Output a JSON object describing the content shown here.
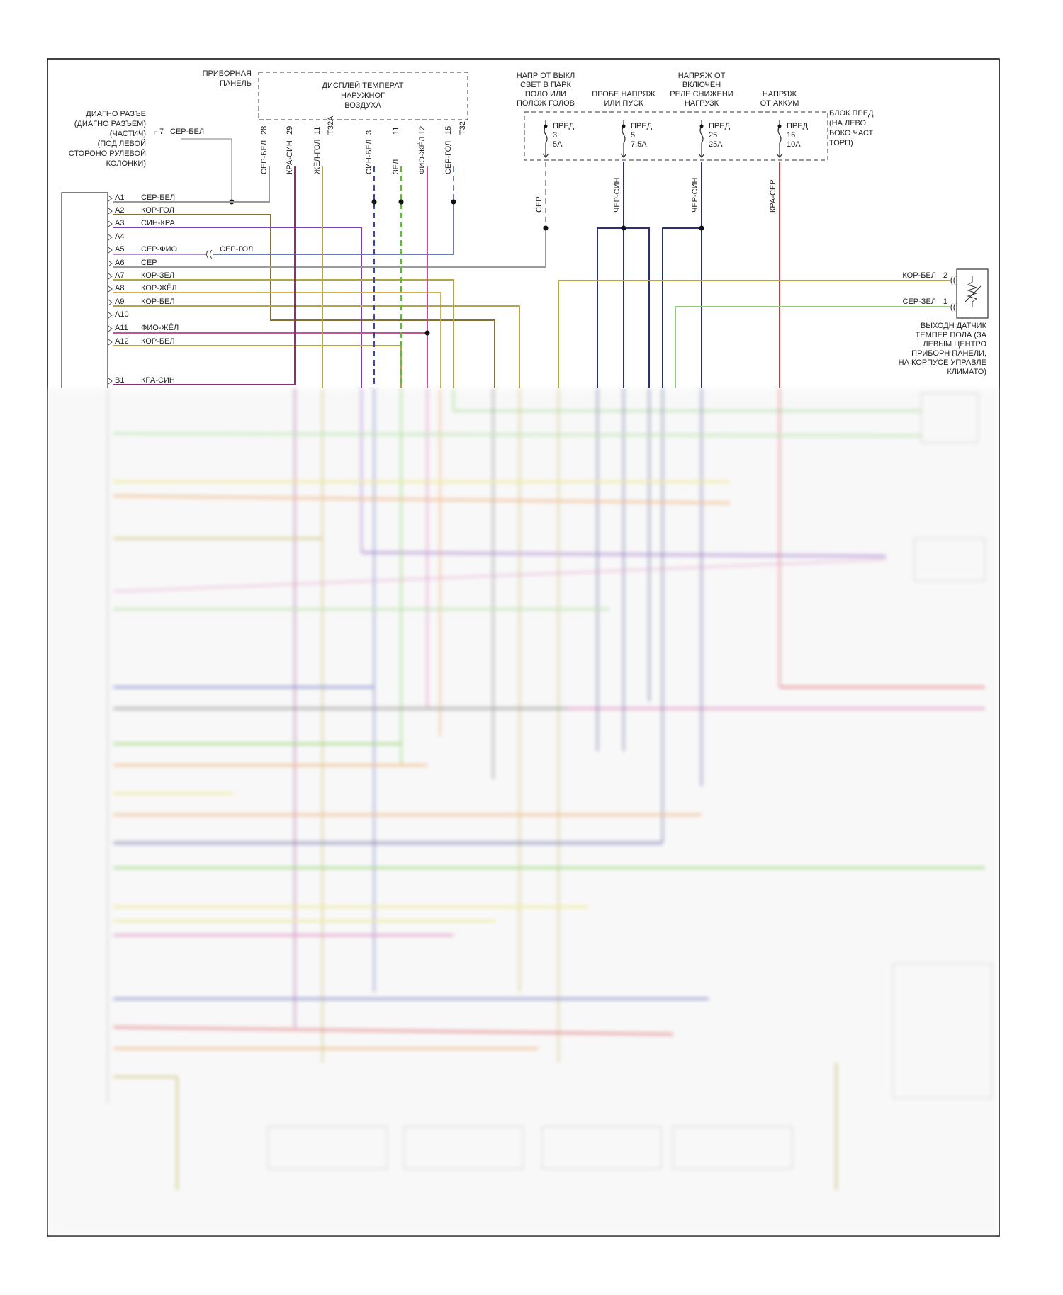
{
  "labels": {
    "instrument_panel": [
      "ПРИБОРНАЯ",
      "ПАНЕЛЬ"
    ],
    "display": [
      "ДИСПЛЕЙ ТЕМПЕРАТ",
      "НАРУЖНОГ",
      "ВОЗДУХА"
    ],
    "diag_connector": [
      "ДИАГНО РАЗЪЕ",
      "(ДИАГНО РАЗЪЕМ)",
      "(ЧАСТИЧ)",
      "(ПОД ЛЕВОЙ",
      "СТОРОНО РУЛЕВОЙ",
      "КОЛОНКИ)"
    ],
    "diag_pin": "7",
    "diag_wire": "СЕР-БЕЛ",
    "fuse_box": [
      "БЛОК ПРЕД",
      "(НА ЛЕВО",
      "БОКО ЧАСТ",
      "ТОРП)"
    ],
    "sensor": [
      "ВЫХОДН ДАТЧИК",
      "ТЕМПЕР ПОЛА (ЗА",
      "ЛЕВЫМ ЦЕНТРО",
      "ПРИБОРН ПАНЕЛИ,",
      "НА КОРПУСЕ УПРАВЛЕ",
      "КЛИМАТО)"
    ]
  },
  "power_sources": [
    {
      "lines": [
        "НАПР ОТ ВЫКЛ",
        "СВЕТ В ПАРК",
        "ПОЛО ИЛИ",
        "ПОЛОЖ ГОЛОВ"
      ]
    },
    {
      "lines": [
        "ПРОБЕ НАПРЯЖ",
        "ИЛИ ПУСК"
      ]
    },
    {
      "lines": [
        "НАПРЯЖ ОТ",
        "ВКЛЮЧЕН",
        "РЕЛЕ СНИЖЕНИ",
        "НАГРУЗК"
      ]
    },
    {
      "lines": [
        "НАПРЯЖ",
        "ОТ АККУМ"
      ]
    }
  ],
  "fuses": [
    {
      "label": "ПРЕД",
      "number": "3",
      "rating": "5A",
      "wire": "СЕР"
    },
    {
      "label": "ПРЕД",
      "number": "5",
      "rating": "7.5A",
      "wire": "ЧЕР-СИН"
    },
    {
      "label": "ПРЕД",
      "number": "25",
      "rating": "25A",
      "wire": "ЧЕР-СИН"
    },
    {
      "label": "ПРЕД",
      "number": "16",
      "rating": "10A",
      "wire": "КРА-СЕР"
    }
  ],
  "display_pins": [
    {
      "pin": "28",
      "wire": "СЕР-БЕЛ"
    },
    {
      "pin": "29",
      "wire": "КРА-СИН"
    },
    {
      "pin": "11",
      "wire": "ЖЁЛ-ГОЛ"
    },
    {
      "pin": "T32A",
      "wire": ""
    },
    {
      "pin": "3",
      "wire": "СИН-БЕЛ"
    },
    {
      "pin": "11",
      "wire": "ЗЕЛ"
    },
    {
      "pin": "12",
      "wire": "ФИО-ЖЁЛ"
    },
    {
      "pin": "15",
      "wire": "СЕР-ГОЛ"
    },
    {
      "pin": "T32",
      "wire": ""
    }
  ],
  "control_pins": [
    {
      "pin": "A1",
      "wire": "СЕР-БЕЛ"
    },
    {
      "pin": "A2",
      "wire": "КОР-ГОЛ"
    },
    {
      "pin": "A3",
      "wire": "СИН-КРА"
    },
    {
      "pin": "A4",
      "wire": ""
    },
    {
      "pin": "A5",
      "wire": "СЕР-ФИО"
    },
    {
      "pin": "A6",
      "wire": "СЕР"
    },
    {
      "pin": "A7",
      "wire": "КОР-ЗЕЛ"
    },
    {
      "pin": "A8",
      "wire": "КОР-ЖЁЛ"
    },
    {
      "pin": "A9",
      "wire": "КОР-БЕЛ"
    },
    {
      "pin": "A10",
      "wire": ""
    },
    {
      "pin": "A11",
      "wire": "ФИО-ЖЁЛ"
    },
    {
      "pin": "A12",
      "wire": "КОР-БЕЛ"
    },
    {
      "pin": "B1",
      "wire": "КРА-СИН"
    }
  ],
  "inline_wire_a5": "СЕР-ГОЛ",
  "sensor_pins": [
    {
      "pin": "2",
      "wire": "КОР-БЕЛ"
    },
    {
      "pin": "1",
      "wire": "СЕР-ЗЕЛ"
    }
  ],
  "colors": {
    "frame": "#111111",
    "grey": "#9a9a9a",
    "brown": "#8a6d3b",
    "blue": "#3b46a8",
    "violet": "#7b3fb5",
    "purple": "#8b2f7a",
    "olive": "#b5a642",
    "green": "#5bbf2e",
    "pink": "#cc4f9a",
    "dark_blue": "#2a2f7a",
    "red": "#d0343a",
    "orange": "#e88a3a",
    "yellow": "#e0d84a",
    "light_green": "#8fcf7a"
  }
}
